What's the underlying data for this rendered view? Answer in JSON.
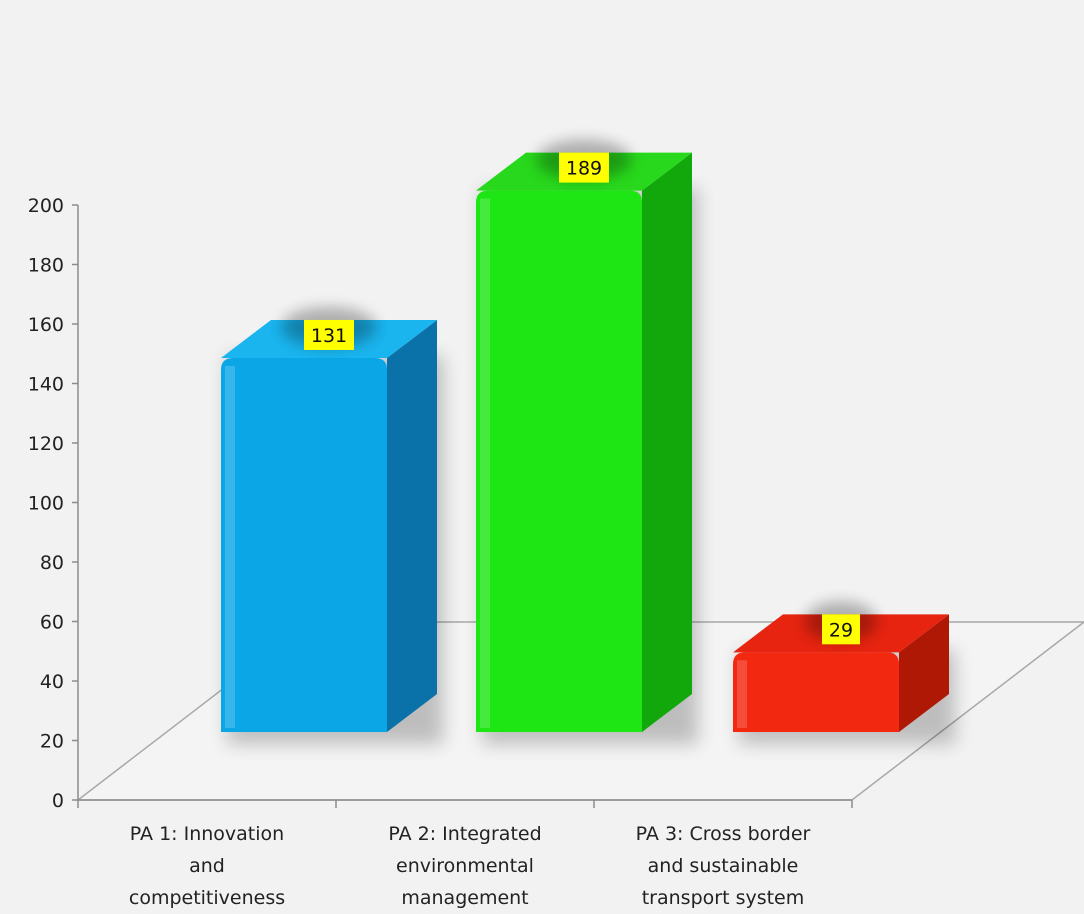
{
  "chart_data": {
    "type": "bar",
    "categories": [
      [
        "PA 1: Innovation",
        "and",
        "competitiveness"
      ],
      [
        "PA 2: Integrated",
        "environmental",
        "management"
      ],
      [
        "PA 3: Cross border",
        "and sustainable",
        "transport system"
      ]
    ],
    "values": [
      131,
      189,
      29
    ],
    "data_labels": [
      "131",
      "189",
      "29"
    ],
    "yticks": [
      "0",
      "20",
      "40",
      "60",
      "80",
      "100",
      "120",
      "140",
      "160",
      "180",
      "200"
    ],
    "ylim": [
      0,
      200
    ],
    "title": "",
    "xlabel": "",
    "ylabel": "",
    "three_d": true,
    "legend": "none",
    "colors": [
      {
        "front": "#0aa6e6",
        "side": "#0a72a8",
        "top": "#1ab4ee"
      },
      {
        "front": "#1ee614",
        "side": "#12a80c",
        "top": "#28d81c"
      },
      {
        "front": "#f22810",
        "side": "#b01806",
        "top": "#e62410"
      }
    ],
    "label_bg": "#ffff00"
  }
}
